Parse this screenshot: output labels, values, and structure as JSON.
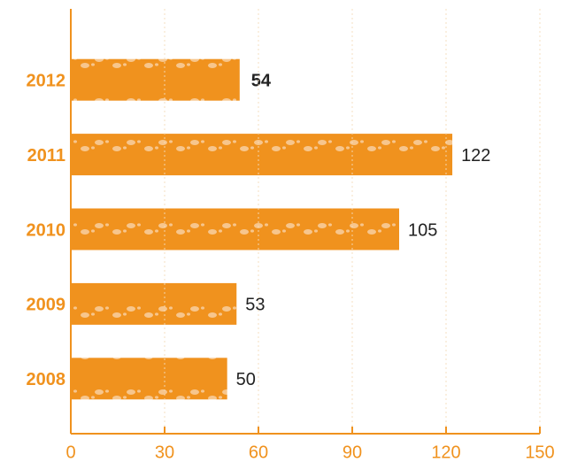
{
  "chart_data": {
    "type": "bar",
    "orientation": "horizontal",
    "categories": [
      "2012",
      "2011",
      "2010",
      "2009",
      "2008"
    ],
    "values": [
      54,
      122,
      105,
      53,
      50
    ],
    "color": "#f0921e",
    "xlim": [
      0,
      150
    ],
    "xticks": [
      0,
      30,
      60,
      90,
      120,
      150
    ],
    "grid": true
  }
}
